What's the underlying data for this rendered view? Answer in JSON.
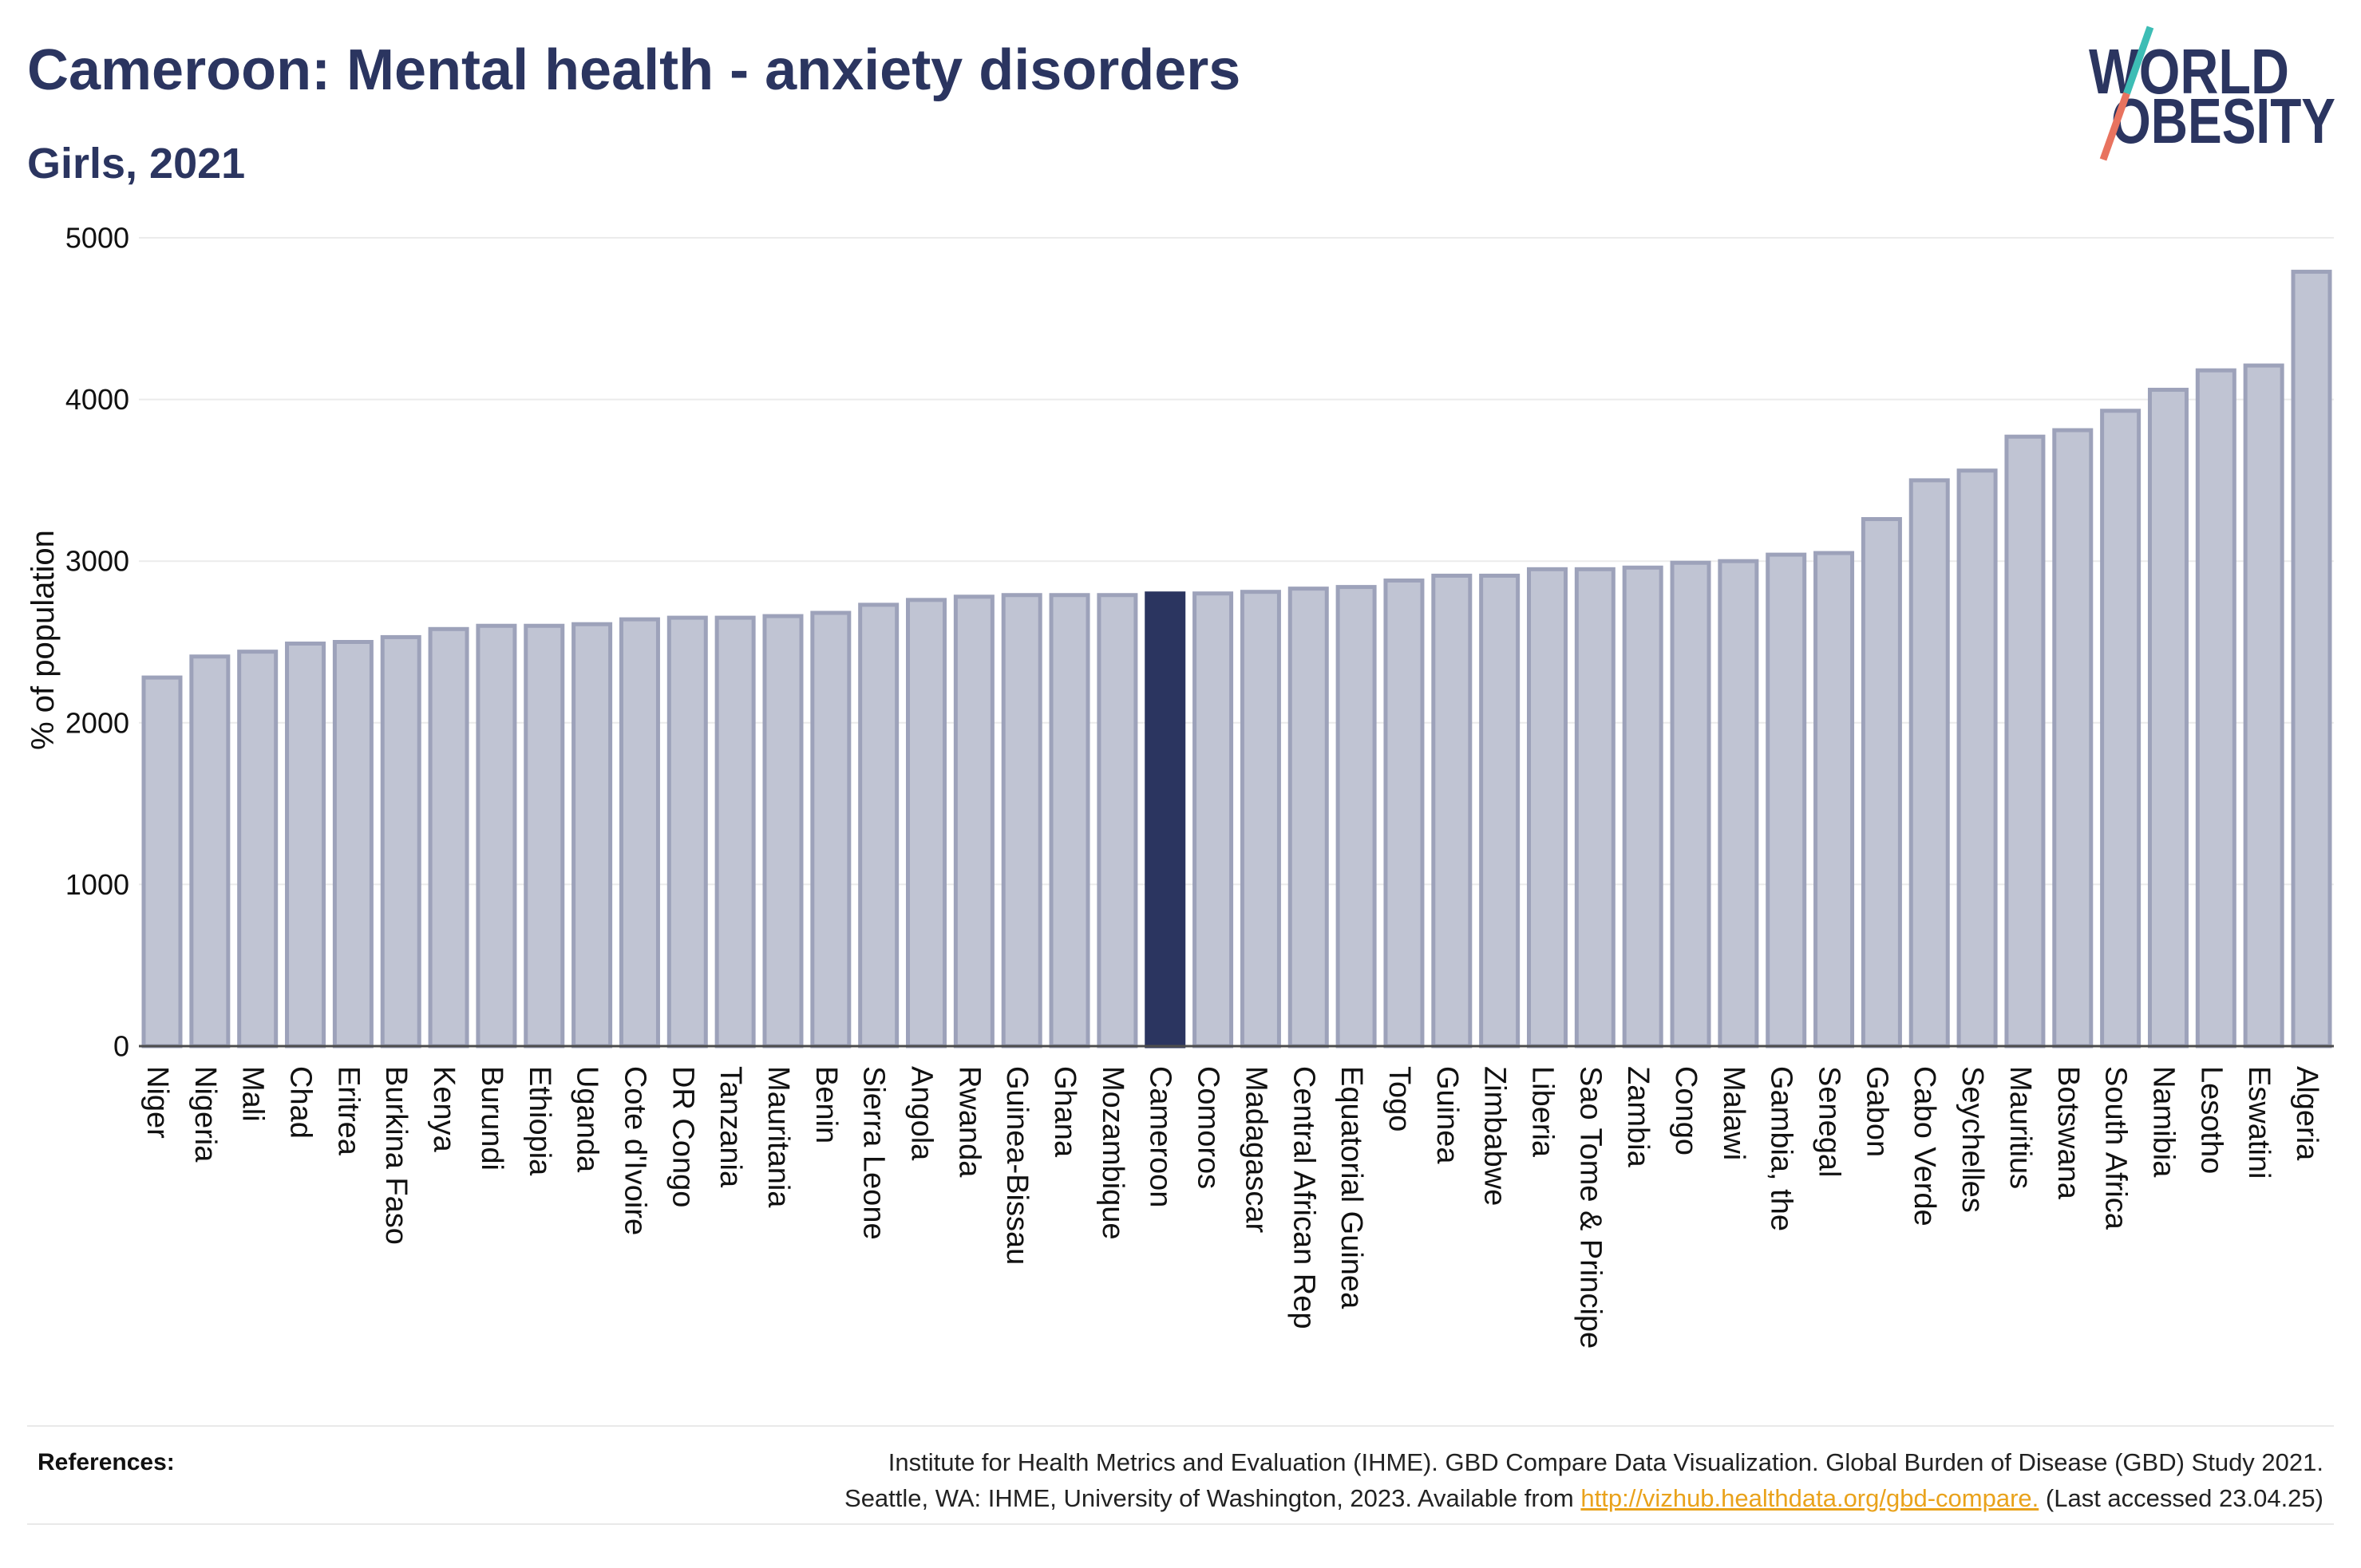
{
  "chart_data": {
    "type": "bar",
    "title": "Cameroon: Mental health - anxiety disorders",
    "subtitle": "Girls, 2021",
    "xlabel": "",
    "ylabel": "% of population",
    "ylim": [
      0,
      5000
    ],
    "yticks": [
      0,
      1000,
      2000,
      3000,
      4000,
      5000
    ],
    "grid": true,
    "highlight_index": 21,
    "categories": [
      "Niger",
      "Nigeria",
      "Mali",
      "Chad",
      "Eritrea",
      "Burkina Faso",
      "Kenya",
      "Burundi",
      "Ethiopia",
      "Uganda",
      "Cote d'Ivoire",
      "DR Congo",
      "Tanzania",
      "Mauritania",
      "Benin",
      "Sierra Leone",
      "Angola",
      "Rwanda",
      "Guinea-Bissau",
      "Ghana",
      "Mozambique",
      "Cameroon",
      "Comoros",
      "Madagascar",
      "Central African Rep",
      "Equatorial Guinea",
      "Togo",
      "Guinea",
      "Zimbabwe",
      "Liberia",
      "Sao Tome & Principe",
      "Zambia",
      "Congo",
      "Malawi",
      "Gambia, the",
      "Senegal",
      "Gabon",
      "Cabo Verde",
      "Seychelles",
      "Mauritius",
      "Botswana",
      "South Africa",
      "Namibia",
      "Lesotho",
      "Eswatini",
      "Algeria"
    ],
    "values": [
      2280,
      2410,
      2440,
      2490,
      2500,
      2530,
      2580,
      2600,
      2600,
      2610,
      2640,
      2650,
      2650,
      2660,
      2680,
      2730,
      2760,
      2780,
      2790,
      2790,
      2790,
      2800,
      2800,
      2810,
      2830,
      2840,
      2880,
      2910,
      2910,
      2950,
      2950,
      2960,
      2990,
      3000,
      3040,
      3050,
      3260,
      3500,
      3560,
      3770,
      3810,
      3930,
      4060,
      4180,
      4210,
      4790
    ]
  },
  "logo": {
    "line1": "WORLD",
    "line2": "OBESITY"
  },
  "references": {
    "label": "References:",
    "line1": "Institute for Health Metrics and Evaluation (IHME). GBD Compare Data Visualization. Global Burden of Disease (GBD) Study 2021.",
    "line2_prefix": "Seattle, WA: IHME, University of Washington, 2023. Available from",
    "link": "http://vizhub.healthdata.org/gbd-compare.",
    "line2_suffix": "(Last accessed 23.04.25)"
  },
  "colors": {
    "title": "#2b3560",
    "highlight": "#2b3560",
    "bar_fill": "#c0c4d3",
    "bar_stroke": "#9da2ba",
    "grid": "#ebebeb",
    "axis_line": "#4d4d4d",
    "axis_text": "#111111",
    "link": "#e9a21b",
    "logo_text": "#2b3560",
    "logo_teal": "#3dbdb5",
    "logo_coral": "#e8735f"
  }
}
